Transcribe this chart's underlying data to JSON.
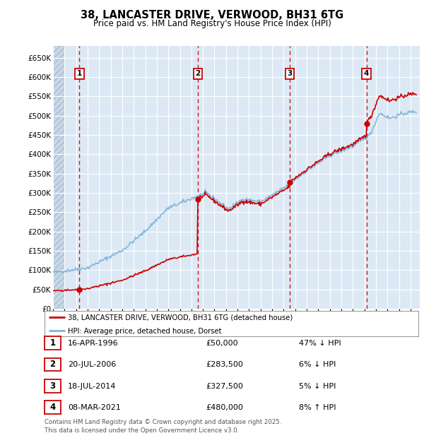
{
  "title": "38, LANCASTER DRIVE, VERWOOD, BH31 6TG",
  "subtitle": "Price paid vs. HM Land Registry's House Price Index (HPI)",
  "background_color": "#ffffff",
  "plot_bg_color": "#dce9f5",
  "grid_color": "#ffffff",
  "ylim": [
    0,
    680000
  ],
  "yticks": [
    0,
    50000,
    100000,
    150000,
    200000,
    250000,
    300000,
    350000,
    400000,
    450000,
    500000,
    550000,
    600000,
    650000
  ],
  "ytick_labels": [
    "£0",
    "£50K",
    "£100K",
    "£150K",
    "£200K",
    "£250K",
    "£300K",
    "£350K",
    "£400K",
    "£450K",
    "£500K",
    "£550K",
    "£600K",
    "£650K"
  ],
  "xlim_start": 1994.0,
  "xlim_end": 2025.8,
  "transactions": [
    {
      "num": 1,
      "year": 1996.29,
      "price": 50000
    },
    {
      "num": 2,
      "year": 2006.55,
      "price": 283500
    },
    {
      "num": 3,
      "year": 2014.54,
      "price": 327500
    },
    {
      "num": 4,
      "year": 2021.18,
      "price": 480000
    }
  ],
  "price_line_color": "#cc0000",
  "hpi_line_color": "#7fb3d9",
  "legend_house_label": "38, LANCASTER DRIVE, VERWOOD, BH31 6TG (detached house)",
  "legend_hpi_label": "HPI: Average price, detached house, Dorset",
  "footer": "Contains HM Land Registry data © Crown copyright and database right 2025.\nThis data is licensed under the Open Government Licence v3.0.",
  "table_rows": [
    {
      "num": 1,
      "date": "16-APR-1996",
      "price": "£50,000",
      "pct": "47% ↓ HPI"
    },
    {
      "num": 2,
      "date": "20-JUL-2006",
      "price": "£283,500",
      "pct": "6% ↓ HPI"
    },
    {
      "num": 3,
      "date": "18-JUL-2014",
      "price": "£327,500",
      "pct": "5% ↓ HPI"
    },
    {
      "num": 4,
      "date": "08-MAR-2021",
      "price": "£480,000",
      "pct": "8% ↑ HPI"
    }
  ]
}
